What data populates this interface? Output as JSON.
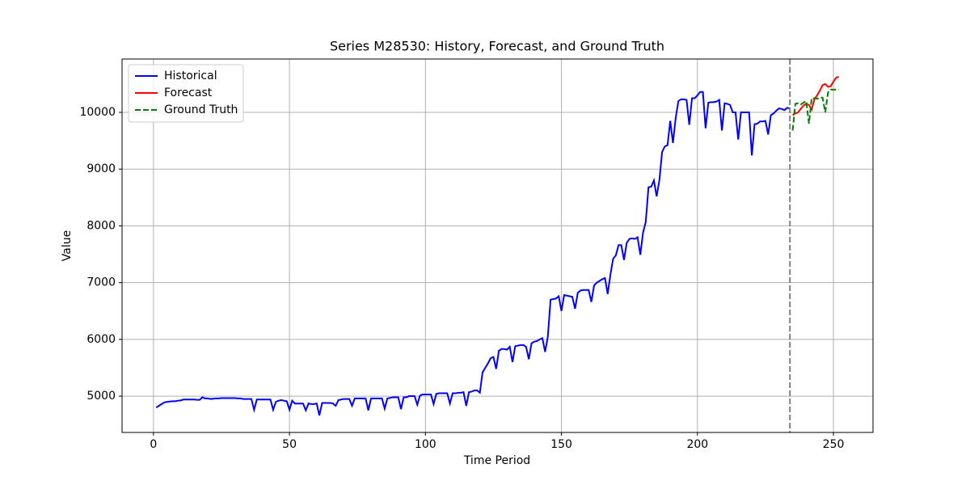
{
  "chart_data": {
    "type": "line",
    "title": "Series M28530: History, Forecast, and Ground Truth",
    "x_label": "Time Period",
    "y_label": "Value",
    "xlim": [
      -11.55,
      264.55
    ],
    "xticks": [
      0,
      50,
      100,
      150,
      200,
      250
    ],
    "ylim": [
      4360,
      10940
    ],
    "yticks": [
      5000,
      6000,
      7000,
      8000,
      9000,
      10000
    ],
    "grid": true,
    "legend": "upper left",
    "vline": 234,
    "vline_color": "#808080",
    "series": [
      {
        "name": "Historical",
        "color": "#0000ff",
        "linestyle": "solid",
        "x": [
          1,
          2,
          3,
          4,
          5,
          6,
          7,
          8,
          9,
          10,
          11,
          12,
          13,
          14,
          15,
          16,
          17,
          18,
          19,
          20,
          21,
          22,
          23,
          24,
          25,
          26,
          27,
          28,
          29,
          30,
          31,
          32,
          33,
          34,
          35,
          36,
          37,
          38,
          39,
          40,
          41,
          42,
          43,
          44,
          45,
          46,
          47,
          48,
          49,
          50,
          51,
          52,
          53,
          54,
          55,
          56,
          57,
          58,
          59,
          60,
          61,
          62,
          63,
          64,
          65,
          66,
          67,
          68,
          69,
          70,
          71,
          72,
          73,
          74,
          75,
          76,
          77,
          78,
          79,
          80,
          81,
          82,
          83,
          84,
          85,
          86,
          87,
          88,
          89,
          90,
          91,
          92,
          93,
          94,
          95,
          96,
          97,
          98,
          99,
          100,
          101,
          102,
          103,
          104,
          105,
          106,
          107,
          108,
          109,
          110,
          111,
          112,
          113,
          114,
          115,
          116,
          117,
          118,
          119,
          120,
          121,
          122,
          123,
          124,
          125,
          126,
          127,
          128,
          129,
          130,
          131,
          132,
          133,
          134,
          135,
          136,
          137,
          138,
          139,
          140,
          141,
          142,
          143,
          144,
          145,
          146,
          147,
          148,
          149,
          150,
          151,
          152,
          153,
          154,
          155,
          156,
          157,
          158,
          159,
          160,
          161,
          162,
          163,
          164,
          165,
          166,
          167,
          168,
          169,
          170,
          171,
          172,
          173,
          174,
          175,
          176,
          177,
          178,
          179,
          180,
          181,
          182,
          183,
          184,
          185,
          186,
          187,
          188,
          189,
          190,
          191,
          192,
          193,
          194,
          195,
          196,
          197,
          198,
          199,
          200,
          201,
          202,
          203,
          204,
          205,
          206,
          207,
          208,
          209,
          210,
          211,
          212,
          213,
          214,
          215,
          216,
          217,
          218,
          219,
          220,
          221,
          222,
          223,
          224,
          225,
          226,
          227,
          228,
          229,
          230,
          231,
          232,
          233,
          234
        ],
        "values": [
          4800,
          4830,
          4860,
          4890,
          4900,
          4905,
          4910,
          4910,
          4920,
          4925,
          4940,
          4940,
          4940,
          4940,
          4940,
          4935,
          4935,
          4980,
          4960,
          4960,
          4950,
          4955,
          4960,
          4960,
          4965,
          4965,
          4965,
          4965,
          4965,
          4965,
          4960,
          4960,
          4950,
          4950,
          4950,
          4950,
          4760,
          4940,
          4940,
          4940,
          4940,
          4940,
          4940,
          4760,
          4900,
          4920,
          4930,
          4920,
          4910,
          4760,
          4920,
          4870,
          4870,
          4870,
          4870,
          4750,
          4870,
          4860,
          4860,
          4870,
          4660,
          4880,
          4880,
          4880,
          4880,
          4870,
          4830,
          4930,
          4940,
          4950,
          4950,
          4950,
          4830,
          4960,
          4960,
          4960,
          4960,
          4960,
          4750,
          4960,
          4960,
          4960,
          4960,
          4960,
          4780,
          4960,
          4970,
          4980,
          4980,
          4980,
          4770,
          4980,
          4980,
          5000,
          5000,
          5000,
          4850,
          5010,
          5030,
          5030,
          5030,
          5030,
          4860,
          5040,
          5050,
          5050,
          5050,
          5050,
          4870,
          5050,
          5050,
          5060,
          5060,
          5070,
          4830,
          5070,
          5080,
          5100,
          5100,
          5060,
          5420,
          5500,
          5580,
          5670,
          5690,
          5480,
          5800,
          5830,
          5830,
          5820,
          5870,
          5600,
          5880,
          5890,
          5900,
          5900,
          5870,
          5650,
          5930,
          5960,
          5970,
          6000,
          6020,
          5780,
          6050,
          6700,
          6710,
          6720,
          6760,
          6500,
          6780,
          6770,
          6760,
          6750,
          6540,
          6820,
          6860,
          6870,
          6870,
          6870,
          6660,
          6950,
          7000,
          7030,
          7060,
          7080,
          6800,
          7140,
          7420,
          7480,
          7660,
          7660,
          7400,
          7700,
          7770,
          7780,
          7770,
          7800,
          7490,
          7880,
          8070,
          8680,
          8690,
          8800,
          8520,
          8800,
          9300,
          9400,
          9420,
          9850,
          9460,
          9900,
          10200,
          10230,
          10230,
          10220,
          9780,
          10250,
          10250,
          10300,
          10360,
          10360,
          9720,
          10170,
          10180,
          10180,
          10190,
          10220,
          9680,
          10160,
          10150,
          10130,
          10000,
          10000,
          9520,
          10000,
          10000,
          10000,
          10000,
          9240,
          9790,
          9800,
          9840,
          9840,
          9850,
          9610,
          9950,
          9980,
          10030,
          10070,
          10060,
          10040,
          10080,
          10070
        ]
      },
      {
        "name": "Forecast",
        "color": "#ff0000",
        "linestyle": "solid",
        "x": [
          235,
          236,
          237,
          238,
          239,
          240,
          241,
          242,
          243,
          244,
          245,
          246,
          247,
          248,
          249,
          250,
          251,
          252
        ],
        "values": [
          9950,
          9980,
          10000,
          10060,
          10120,
          10150,
          10130,
          10050,
          10230,
          10300,
          10380,
          10480,
          10500,
          10450,
          10460,
          10540,
          10610,
          10630
        ]
      },
      {
        "name": "Ground Truth",
        "color": "#008000",
        "linestyle": "dashed",
        "x": [
          235,
          236,
          237,
          238,
          239,
          240,
          241,
          242,
          243,
          244,
          245,
          246,
          247,
          248,
          249,
          250,
          251,
          252
        ],
        "values": [
          9680,
          10150,
          10160,
          10140,
          10170,
          10200,
          9800,
          10250,
          10250,
          10240,
          10260,
          10260,
          10000,
          10350,
          10400,
          10400,
          10400,
          10400
        ]
      }
    ]
  }
}
